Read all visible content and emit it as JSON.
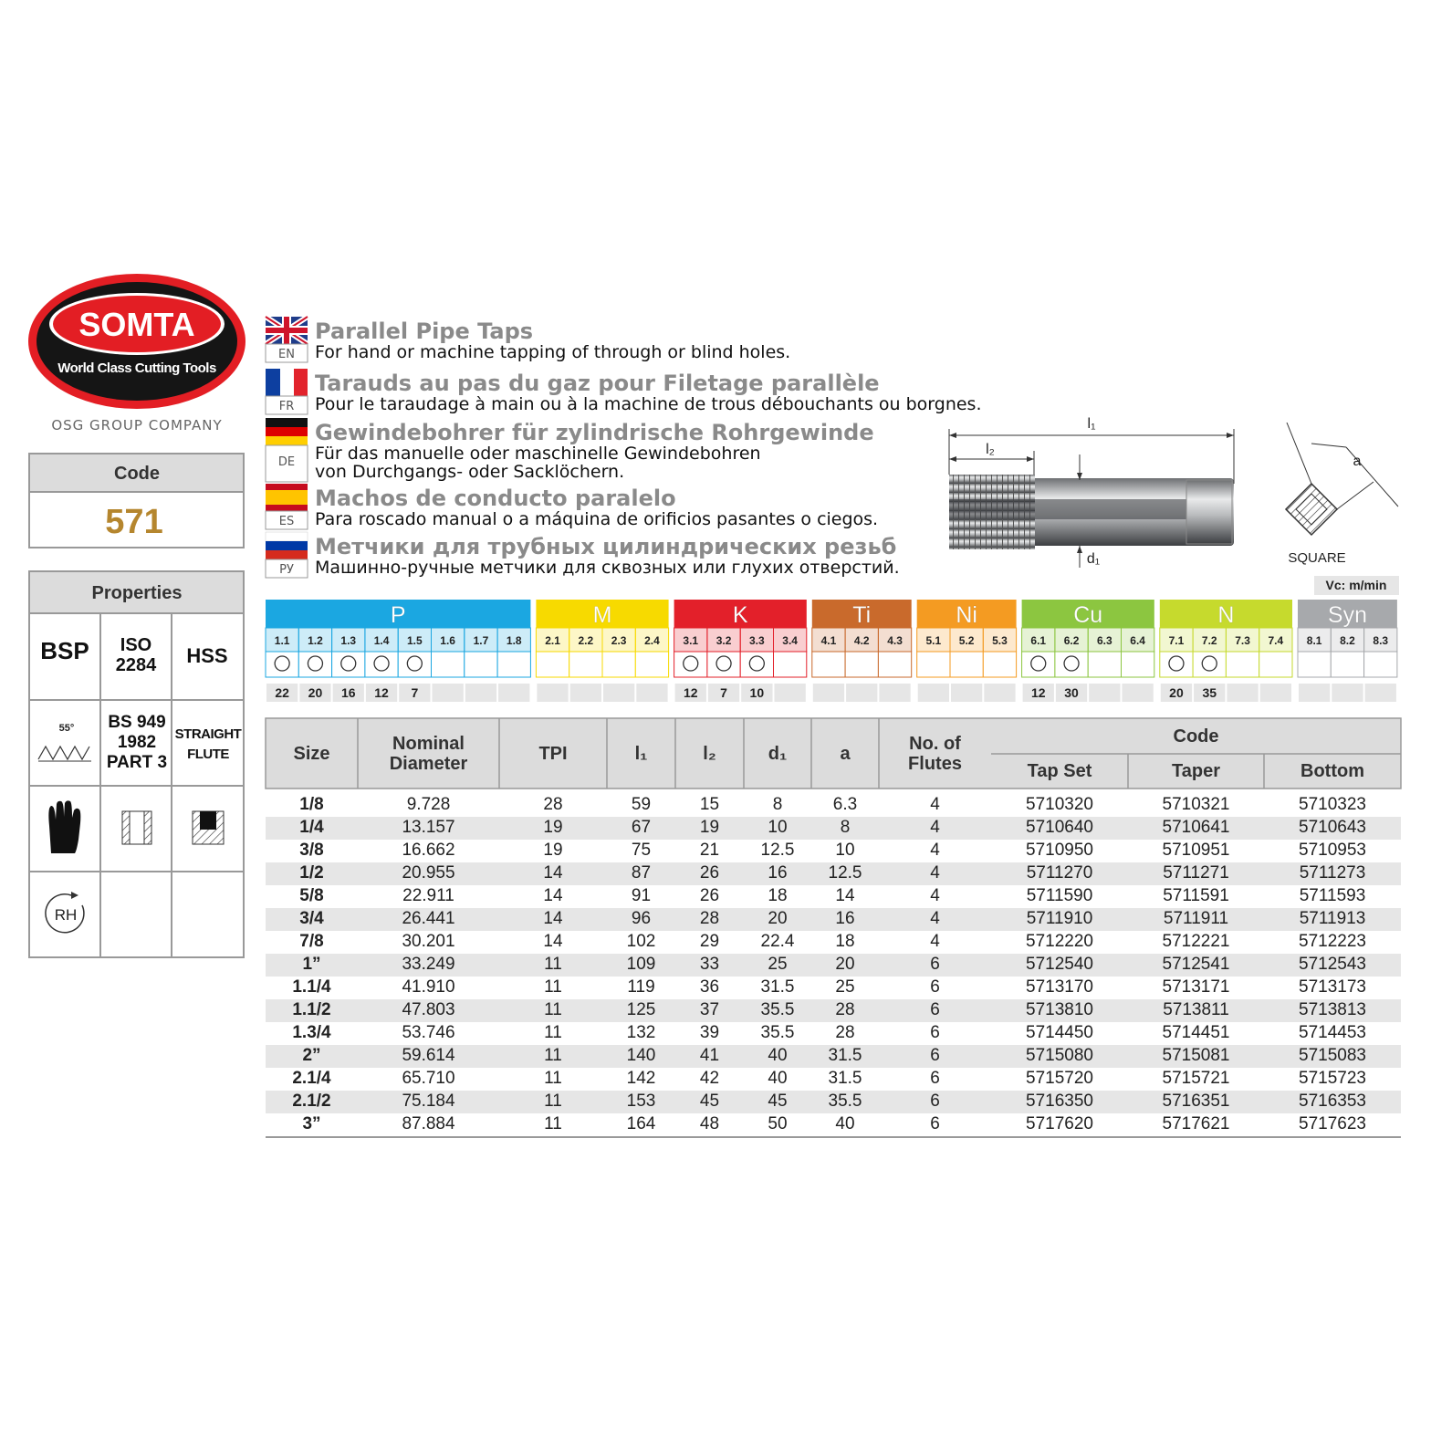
{
  "logo": {
    "brand": "SOMTA",
    "tagline": "World Class Cutting Tools",
    "group": "OSG GROUP COMPANY"
  },
  "code": {
    "label": "Code",
    "value": "571"
  },
  "properties": {
    "title": "Properties",
    "standard": "BSP",
    "iso": [
      "ISO",
      "2284"
    ],
    "material": "HSS",
    "angle": "55°",
    "spec": [
      "BS 949",
      "1982",
      "PART 3"
    ],
    "flute": [
      "STRAIGHT",
      "FLUTE"
    ],
    "rotation": "RH"
  },
  "languages": [
    {
      "code": "EN",
      "title": "Parallel Pipe Taps",
      "desc": [
        "For hand or machine tapping of through or blind holes."
      ]
    },
    {
      "code": "FR",
      "title": "Tarauds au pas du gaz pour Filetage parallèle",
      "desc": [
        "Pour le taraudage à main ou à la machine de trous débouchants ou borgnes."
      ]
    },
    {
      "code": "DE",
      "title": "Gewindebohrer für zylindrische Rohrgewinde",
      "desc": [
        "Für das manuelle oder maschinelle Gewindebohren",
        "von Durchgangs- oder Sacklöchern."
      ]
    },
    {
      "code": "ES",
      "title": "Machos de conducto paralelo",
      "desc": [
        "Para roscado manual o a máquina de orificios pasantes o ciegos."
      ]
    },
    {
      "code": "РУ",
      "title": "Метчики для трубных цилиндрических резьб",
      "desc": [
        "Машинно-ручные метчики для сквозных или глухих отверстий."
      ]
    }
  ],
  "diagram": {
    "l1": "l₁",
    "l2": "l₂",
    "d1": "d₁",
    "a": "a",
    "square": "SQUARE"
  },
  "speed_unit": "Vc: m/min",
  "materials": [
    {
      "name": "P",
      "color": "#1ba7e1",
      "subs": [
        "1.1",
        "1.2",
        "1.3",
        "1.4",
        "1.5",
        "1.6",
        "1.7",
        "1.8"
      ],
      "suitable": [
        true,
        true,
        true,
        true,
        true,
        false,
        false,
        false
      ],
      "speeds": [
        22,
        20,
        16,
        12,
        7,
        null,
        null,
        null
      ]
    },
    {
      "name": "M",
      "color": "#f7da00",
      "subs": [
        "2.1",
        "2.2",
        "2.3",
        "2.4"
      ],
      "suitable": [
        false,
        false,
        false,
        false
      ],
      "speeds": [
        null,
        null,
        null,
        null
      ]
    },
    {
      "name": "K",
      "color": "#e3202a",
      "subs": [
        "3.1",
        "3.2",
        "3.3",
        "3.4"
      ],
      "suitable": [
        true,
        true,
        true,
        false
      ],
      "speeds": [
        12,
        7,
        10,
        null
      ]
    },
    {
      "name": "Ti",
      "color": "#c96a2c",
      "subs": [
        "4.1",
        "4.2",
        "4.3"
      ],
      "suitable": [
        false,
        false,
        false
      ],
      "speeds": [
        null,
        null,
        null
      ]
    },
    {
      "name": "Ni",
      "color": "#f49b22",
      "subs": [
        "5.1",
        "5.2",
        "5.3"
      ],
      "suitable": [
        false,
        false,
        false
      ],
      "speeds": [
        null,
        null,
        null
      ]
    },
    {
      "name": "Cu",
      "color": "#8cc640",
      "subs": [
        "6.1",
        "6.2",
        "6.3",
        "6.4"
      ],
      "suitable": [
        true,
        true,
        false,
        false
      ],
      "speeds": [
        12,
        30,
        null,
        null
      ]
    },
    {
      "name": "N",
      "color": "#c6da2d",
      "subs": [
        "7.1",
        "7.2",
        "7.3",
        "7.4"
      ],
      "suitable": [
        true,
        true,
        false,
        false
      ],
      "speeds": [
        20,
        35,
        null,
        null
      ]
    },
    {
      "name": "Syn",
      "color": "#a7a9ac",
      "subs": [
        "8.1",
        "8.2",
        "8.3"
      ],
      "suitable": [
        false,
        false,
        false
      ],
      "speeds": [
        null,
        null,
        null
      ]
    }
  ],
  "table": {
    "columns": [
      "Size",
      "Nominal Diameter",
      "TPI",
      "l₁",
      "l₂",
      "d₁",
      "a",
      "No. of Flutes"
    ],
    "code_group": "Code",
    "code_columns": [
      "Tap Set",
      "Taper",
      "Bottom"
    ],
    "rows": [
      [
        "1/8",
        "9.728",
        "28",
        "59",
        "15",
        "8",
        "6.3",
        "4",
        "5710320",
        "5710321",
        "5710323"
      ],
      [
        "1/4",
        "13.157",
        "19",
        "67",
        "19",
        "10",
        "8",
        "4",
        "5710640",
        "5710641",
        "5710643"
      ],
      [
        "3/8",
        "16.662",
        "19",
        "75",
        "21",
        "12.5",
        "10",
        "4",
        "5710950",
        "5710951",
        "5710953"
      ],
      [
        "1/2",
        "20.955",
        "14",
        "87",
        "26",
        "16",
        "12.5",
        "4",
        "5711270",
        "5711271",
        "5711273"
      ],
      [
        "5/8",
        "22.911",
        "14",
        "91",
        "26",
        "18",
        "14",
        "4",
        "5711590",
        "5711591",
        "5711593"
      ],
      [
        "3/4",
        "26.441",
        "14",
        "96",
        "28",
        "20",
        "16",
        "4",
        "5711910",
        "5711911",
        "5711913"
      ],
      [
        "7/8",
        "30.201",
        "14",
        "102",
        "29",
        "22.4",
        "18",
        "4",
        "5712220",
        "5712221",
        "5712223"
      ],
      [
        "1”",
        "33.249",
        "11",
        "109",
        "33",
        "25",
        "20",
        "6",
        "5712540",
        "5712541",
        "5712543"
      ],
      [
        "1.1/4",
        "41.910",
        "11",
        "119",
        "36",
        "31.5",
        "25",
        "6",
        "5713170",
        "5713171",
        "5713173"
      ],
      [
        "1.1/2",
        "47.803",
        "11",
        "125",
        "37",
        "35.5",
        "28",
        "6",
        "5713810",
        "5713811",
        "5713813"
      ],
      [
        "1.3/4",
        "53.746",
        "11",
        "132",
        "39",
        "35.5",
        "28",
        "6",
        "5714450",
        "5714451",
        "5714453"
      ],
      [
        "2”",
        "59.614",
        "11",
        "140",
        "41",
        "40",
        "31.5",
        "6",
        "5715080",
        "5715081",
        "5715083"
      ],
      [
        "2.1/4",
        "65.710",
        "11",
        "142",
        "42",
        "40",
        "31.5",
        "6",
        "5715720",
        "5715721",
        "5715723"
      ],
      [
        "2.1/2",
        "75.184",
        "11",
        "153",
        "45",
        "45",
        "35.5",
        "6",
        "5716350",
        "5716351",
        "5716353"
      ],
      [
        "3”",
        "87.884",
        "11",
        "164",
        "48",
        "50",
        "40",
        "6",
        "5717620",
        "5717621",
        "5717623"
      ]
    ]
  }
}
